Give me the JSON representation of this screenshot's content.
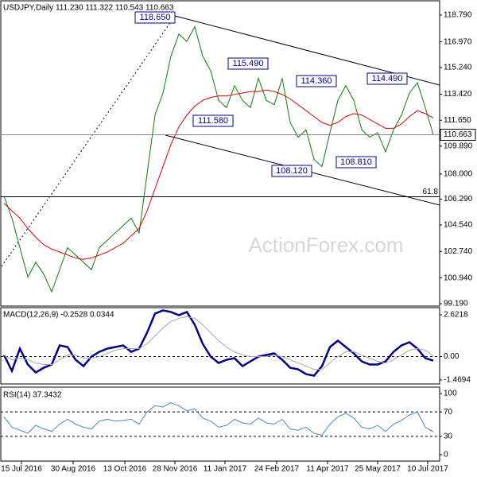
{
  "chart_data": [
    {
      "type": "line",
      "title": "USDJPY,Daily  111.230 111.322 110.543 110.663",
      "xlim": [
        -0.5,
        54.8
      ],
      "ylim": [
        99.03,
        119.76
      ],
      "yticks": [
        {
          "value": 118.79,
          "label": "118.790"
        },
        {
          "value": 116.97,
          "label": "116.970"
        },
        {
          "value": 115.24,
          "label": "115.240"
        },
        {
          "value": 113.42,
          "label": "113.420"
        },
        {
          "value": 111.65,
          "label": "111.650"
        },
        {
          "value": 109.89,
          "label": "109.890"
        },
        {
          "value": 108,
          "label": "108.000"
        },
        {
          "value": 106.29,
          "label": "106.290"
        },
        {
          "value": 104.54,
          "label": "104.540"
        },
        {
          "value": 102.74,
          "label": "102.740"
        },
        {
          "value": 100.94,
          "label": "100.940"
        },
        {
          "value": 99.19,
          "label": "99.190"
        }
      ],
      "series": [
        {
          "color": "#0a7d0a",
          "values": [
            106.5,
            105,
            103,
            101,
            102,
            101.2,
            100,
            101.5,
            103,
            102.5,
            102,
            101.5,
            103,
            103.5,
            104,
            104.5,
            105,
            104,
            108,
            112,
            113.5,
            116,
            117.5,
            117,
            118,
            116,
            115,
            113,
            112.5,
            114,
            113,
            112.5,
            114.5,
            113,
            112.7,
            114.5,
            111.5,
            110.5,
            111,
            109,
            108.5,
            110.8,
            113,
            114,
            113,
            111,
            110.5,
            110.8,
            109.5,
            111,
            112,
            113.5,
            114.2,
            112.5,
            110.663
          ]
        },
        {
          "color": "#e00000",
          "values": [
            106,
            105.5,
            105,
            104.3,
            103.7,
            103.2,
            102.9,
            102.7,
            102.5,
            102.3,
            102.2,
            102.3,
            102.5,
            102.7,
            103,
            103.3,
            103.8,
            104.3,
            105.5,
            107,
            108.5,
            110,
            111.2,
            112,
            112.6,
            113,
            113.2,
            113.3,
            113.3,
            113.4,
            113.5,
            113.6,
            113.6,
            113.7,
            113.6,
            113.4,
            113.1,
            112.7,
            112.3,
            111.9,
            111.5,
            111.3,
            111.5,
            111.9,
            112.1,
            112,
            111.7,
            111.4,
            111.1,
            111.1,
            111.4,
            111.9,
            112.3,
            112.1,
            111.8
          ]
        }
      ],
      "annotations": [
        "118.650",
        "115.490",
        "114.360",
        "114.490",
        "111.580",
        "108.120",
        "108.810"
      ],
      "last_label": "110.663",
      "fib": {
        "label": "61.8",
        "value": 106.45
      },
      "watermark": "ActionForex.com"
    },
    {
      "type": "line",
      "title": "MACD(12,26,9) -0.2528 0.0344",
      "xlim": [
        -0.5,
        54.8
      ],
      "ylim": [
        -1.72,
        3.07
      ],
      "yticks": [
        2.6218,
        {
          "value": 0,
          "label": "0.00"
        },
        -1.4694
      ],
      "levels": [
        0
      ],
      "series": [
        {
          "color": "#00008b",
          "width": 2.5,
          "values": [
            0.1,
            -0.9,
            0.5,
            -0.5,
            -1.0,
            -0.7,
            -0.5,
            0.7,
            0.6,
            -0.2,
            -0.6,
            0,
            0.3,
            0.5,
            0.6,
            0.7,
            0.3,
            0.5,
            1.5,
            2.7,
            2.9,
            2.8,
            2.6,
            2.8,
            2.0,
            0.8,
            0.0,
            -0.4,
            -0.2,
            -0.1,
            -0.6,
            -0.3,
            0.0,
            0.1,
            0.2,
            -0.2,
            -0.7,
            -0.8,
            -1.1,
            -1.2,
            -0.6,
            0.6,
            1.0,
            0.6,
            0.2,
            -0.3,
            -0.5,
            -0.5,
            -0.3,
            0.3,
            0.7,
            0.9,
            0.5,
            -0.1,
            -0.2528
          ]
        },
        {
          "color": "#a8a8a8",
          "width": 1,
          "values": [
            0.1,
            -0.2,
            -0.1,
            -0.2,
            -0.4,
            -0.5,
            -0.5,
            -0.2,
            0.1,
            0.1,
            -0.1,
            -0.1,
            0.0,
            0.2,
            0.4,
            0.5,
            0.5,
            0.5,
            0.8,
            1.3,
            1.8,
            2.2,
            2.4,
            2.5,
            2.4,
            2.0,
            1.5,
            1.0,
            0.6,
            0.3,
            0.1,
            0.0,
            0.0,
            0.0,
            0.1,
            0.0,
            -0.2,
            -0.4,
            -0.6,
            -0.8,
            -0.8,
            -0.4,
            0.0,
            0.3,
            0.3,
            0.1,
            -0.1,
            -0.3,
            -0.4,
            -0.2,
            0.1,
            0.4,
            0.5,
            0.4,
            0.0344
          ]
        }
      ]
    },
    {
      "type": "line",
      "title": "RSI(14) 37.3432",
      "xlim": [
        -0.5,
        54.8
      ],
      "ylim": [
        -10.5,
        110.5
      ],
      "yticks": [
        100,
        70,
        30,
        0
      ],
      "levels": [
        70,
        30
      ],
      "xticks": [
        {
          "value": 2.2,
          "label": "15 Jul 2016"
        },
        {
          "value": 8.7,
          "label": "30 Aug 2016"
        },
        {
          "value": 15.2,
          "label": "13 Oct 2016"
        },
        {
          "value": 21.5,
          "label": "28 Nov 2016"
        },
        {
          "value": 27.8,
          "label": "11 Jan 2017"
        },
        {
          "value": 34.3,
          "label": "24 Feb 2017"
        },
        {
          "value": 40.7,
          "label": "11 Apr 2017"
        },
        {
          "value": 47,
          "label": "25 May 2017"
        },
        {
          "value": 53.3,
          "label": "10 Jul 2017"
        }
      ],
      "series": [
        {
          "color": "#4a86c8",
          "width": 1,
          "values": [
            62,
            45,
            40,
            35,
            48,
            42,
            38,
            50,
            58,
            50,
            45,
            42,
            55,
            58,
            55,
            56,
            58,
            50,
            70,
            80,
            78,
            85,
            80,
            72,
            75,
            60,
            55,
            45,
            48,
            58,
            52,
            50,
            60,
            52,
            50,
            58,
            42,
            40,
            45,
            35,
            32,
            50,
            62,
            68,
            60,
            45,
            42,
            48,
            38,
            50,
            56,
            65,
            70,
            45,
            37.3432
          ]
        }
      ]
    }
  ]
}
